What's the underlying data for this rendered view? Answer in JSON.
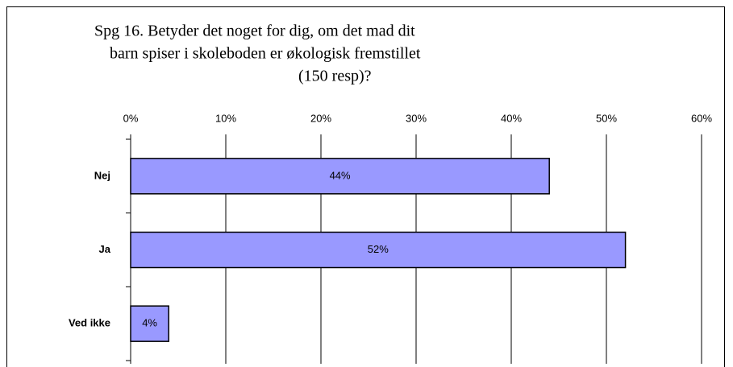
{
  "chart_data": {
    "type": "hbar",
    "title": [
      "Spg 16. Betyder det noget for dig, om det mad dit",
      "barn spiser i skoleboden er økologisk fremstillet",
      "(150 resp)?"
    ],
    "categories": [
      "Nej",
      "Ja",
      "Ved ikke"
    ],
    "values": [
      44,
      52,
      4
    ],
    "value_labels": [
      "44%",
      "52%",
      "4%"
    ],
    "color": "#9999ff",
    "xlim": [
      0,
      60
    ],
    "xticks": [
      {
        "value": 0,
        "label": "0%"
      },
      {
        "value": 10,
        "label": "10%"
      },
      {
        "value": 20,
        "label": "20%"
      },
      {
        "value": 30,
        "label": "30%"
      },
      {
        "value": 40,
        "label": "40%"
      },
      {
        "value": 50,
        "label": "50%"
      },
      {
        "value": 60,
        "label": "60%"
      }
    ],
    "grid": true
  }
}
